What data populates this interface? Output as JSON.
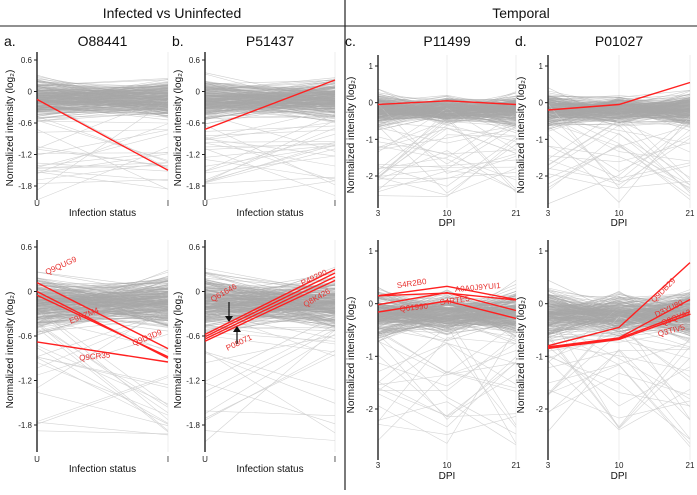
{
  "headers": {
    "left": "Infected vs Uninfected",
    "right": "Temporal"
  },
  "y_axis_label": "Normalized intensity (log₂)",
  "colors": {
    "highlight": "#ff2020",
    "background_lines": "#a8a8a8",
    "label": "#e8312f"
  },
  "chart_data": [
    {
      "id": "a-top",
      "type": "line",
      "panel_letter": "a.",
      "title": "O88441",
      "xlabel": "Infection status",
      "categories": [
        "U",
        "I"
      ],
      "yticks": [
        0.6,
        0,
        -0.6,
        -1.2,
        -1.8
      ],
      "ylabel": "Normalized intensity (log₂)",
      "series": [
        {
          "values": [
            -0.15,
            -1.5
          ]
        }
      ]
    },
    {
      "id": "b-top",
      "type": "line",
      "panel_letter": "b.",
      "title": "P51437",
      "xlabel": "Infection status",
      "categories": [
        "U",
        "I"
      ],
      "yticks": [
        0.6,
        0,
        -0.6,
        -1.2,
        -1.8
      ],
      "ylabel": "Normalized intensity (log₂)",
      "series": [
        {
          "values": [
            -0.72,
            0.22
          ]
        }
      ]
    },
    {
      "id": "c-top",
      "type": "line",
      "panel_letter": "c.",
      "title": "P11499",
      "xlabel": "DPI",
      "categories": [
        "3",
        "10",
        "21"
      ],
      "yticks": [
        1,
        0,
        -1,
        -2
      ],
      "ylabel": "Normalized intensity (log₂)",
      "series": [
        {
          "values": [
            -0.05,
            0.05,
            -0.05
          ]
        }
      ]
    },
    {
      "id": "d-top",
      "type": "line",
      "panel_letter": "d.",
      "title": "P01027",
      "xlabel": "DPI",
      "categories": [
        "3",
        "10",
        "21"
      ],
      "yticks": [
        1,
        0,
        -1,
        -2
      ],
      "ylabel": "Normalized intensity (log₂)",
      "series": [
        {
          "values": [
            -0.2,
            -0.05,
            0.55
          ]
        }
      ]
    },
    {
      "id": "a-bottom",
      "type": "line",
      "xlabel": "Infection status",
      "categories": [
        "U",
        "I"
      ],
      "yticks": [
        0.6,
        0,
        -0.6,
        -1.2,
        -1.8
      ],
      "ylabel": "Normalized intensity (log₂)",
      "series": [
        {
          "name": "Q9QUG9",
          "values": [
            0.12,
            -0.77
          ]
        },
        {
          "name": "E9PZM4",
          "values": [
            0.0,
            -0.9
          ]
        },
        {
          "name": "Q9D3D9",
          "values": [
            -0.05,
            -0.88
          ]
        },
        {
          "name": "Q9CR35",
          "values": [
            -0.68,
            -0.95
          ]
        }
      ]
    },
    {
      "id": "b-bottom",
      "type": "line",
      "xlabel": "Infection status",
      "categories": [
        "U",
        "I"
      ],
      "yticks": [
        0.6,
        0,
        -0.6,
        -1.2,
        -1.8
      ],
      "ylabel": "Normalized intensity (log₂)",
      "series": [
        {
          "name": "P49290",
          "values": [
            -0.58,
            0.3
          ]
        },
        {
          "name": "Q61646",
          "values": [
            -0.61,
            0.25
          ]
        },
        {
          "name": "P08071",
          "values": [
            -0.64,
            0.2
          ]
        },
        {
          "name": "Q8K426",
          "values": [
            -0.67,
            0.15
          ]
        }
      ]
    },
    {
      "id": "c-bottom",
      "type": "line",
      "xlabel": "DPI",
      "categories": [
        "3",
        "10",
        "21"
      ],
      "yticks": [
        1,
        0,
        -1,
        -2
      ],
      "ylabel": "Normalized intensity (log₂)",
      "series": [
        {
          "name": "S4R2B0",
          "values": [
            0.15,
            0.33,
            0.08
          ]
        },
        {
          "name": "A0A0J9YUI1",
          "values": [
            0.15,
            0.2,
            0.07
          ]
        },
        {
          "name": "S4RTE5",
          "values": [
            -0.02,
            0.21,
            -0.13
          ]
        },
        {
          "name": "Q61990",
          "values": [
            -0.16,
            0.05,
            -0.28
          ]
        }
      ]
    },
    {
      "id": "d-bottom",
      "type": "line",
      "xlabel": "DPI",
      "categories": [
        "3",
        "10",
        "21"
      ],
      "yticks": [
        1,
        0,
        -1,
        -2
      ],
      "ylabel": "Normalized intensity (log₂)",
      "series": [
        {
          "name": "Q9DB29",
          "values": [
            -0.8,
            -0.45,
            0.78
          ]
        },
        {
          "name": "D3YU80",
          "values": [
            -0.82,
            -0.65,
            0.08
          ]
        },
        {
          "name": "Q9QYA2",
          "values": [
            -0.83,
            -0.66,
            -0.15
          ]
        },
        {
          "name": "Q3TIV5",
          "values": [
            -0.85,
            -0.68,
            -0.2
          ]
        }
      ]
    }
  ]
}
